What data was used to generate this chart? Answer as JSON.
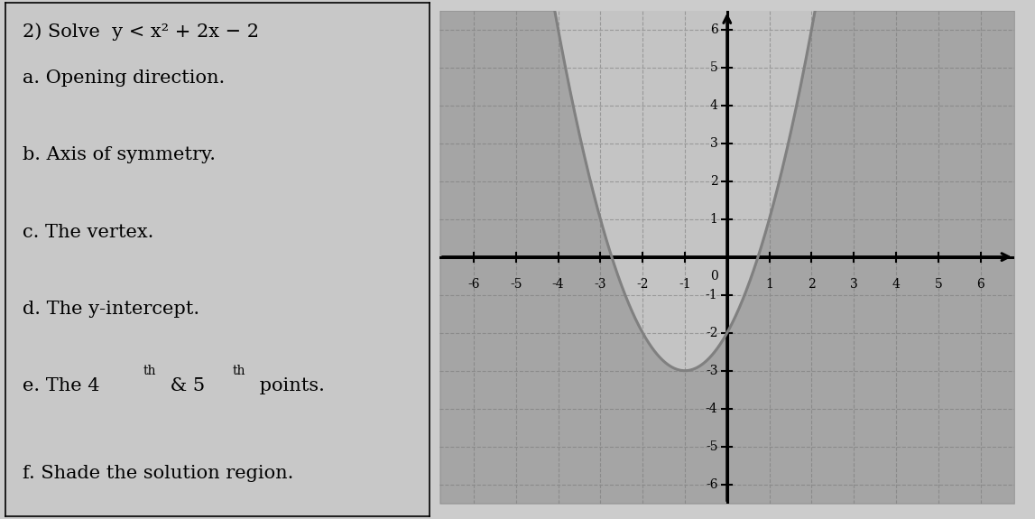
{
  "left_text_lines": [
    "2) Solve  y < x² + 2x − 2",
    "a. Opening direction.",
    "b. Axis of symmetry.",
    "c. The vertex.",
    "d. The y-intercept.",
    "e. The 4th & 5th points.",
    "f. Shade the solution region."
  ],
  "xlim": [
    -6.8,
    6.8
  ],
  "ylim": [
    -6.5,
    6.5
  ],
  "xticks": [
    -6,
    -5,
    -4,
    -3,
    -2,
    -1,
    1,
    2,
    3,
    4,
    5,
    6
  ],
  "yticks": [
    -6,
    -5,
    -4,
    -3,
    -2,
    -1,
    1,
    2,
    3,
    4,
    5,
    6
  ],
  "grid_color": "#999999",
  "grid_style": "--",
  "background_color": "#cccccc",
  "graph_bg": "#c4c4c4",
  "parabola_color": "#808080",
  "parabola_lw": 2.2,
  "shade_color": "#777777",
  "shade_alpha": 0.4,
  "axis_color": "#000000",
  "a_coeff": 1,
  "b_coeff": 2,
  "c_coeff": -2,
  "left_panel_bg": "#c8c8c8",
  "tick_fontsize": 10,
  "label_fontsize": 15,
  "title_fontsize": 15
}
